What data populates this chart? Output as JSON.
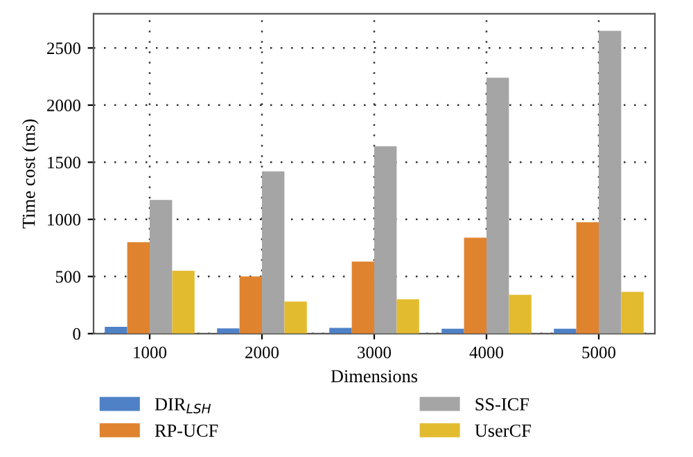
{
  "chart_data": {
    "type": "bar",
    "xlabel": "Dimensions",
    "ylabel": "Time cost (ms)",
    "categories": [
      "1000",
      "2000",
      "3000",
      "4000",
      "5000"
    ],
    "series": [
      {
        "name": "DIR$_{LSH}$",
        "color": "#4f81c7",
        "values": [
          60,
          45,
          50,
          42,
          42
        ]
      },
      {
        "name": "RP-UCF",
        "color": "#e0832f",
        "values": [
          800,
          500,
          630,
          840,
          975
        ]
      },
      {
        "name": "SS-ICF",
        "color": "#a5a5a5",
        "values": [
          1170,
          1420,
          1640,
          2240,
          2650
        ]
      },
      {
        "name": "UserCF",
        "color": "#e3bb2f",
        "values": [
          550,
          280,
          300,
          340,
          365
        ]
      }
    ],
    "ylim": [
      0,
      2800
    ],
    "yticks": [
      0,
      500,
      1000,
      1500,
      2000,
      2500
    ],
    "grid": true,
    "legend": "bottom"
  }
}
